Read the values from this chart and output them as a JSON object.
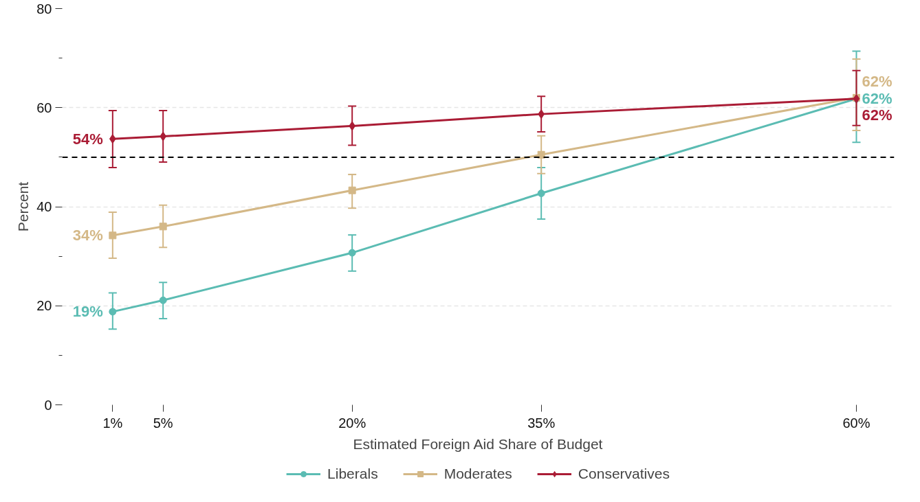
{
  "chart_data": {
    "type": "line",
    "xlabel": "Estimated Foreign Aid Share of Budget",
    "ylabel": "Percent",
    "x": [
      1,
      5,
      20,
      35,
      60
    ],
    "xlim": [
      -3,
      63
    ],
    "ylim": [
      0,
      80
    ],
    "xticks": [
      {
        "value": 1,
        "label": "1%"
      },
      {
        "value": 5,
        "label": "5%"
      },
      {
        "value": 20,
        "label": "20%"
      },
      {
        "value": 35,
        "label": "35%"
      },
      {
        "value": 60,
        "label": "60%"
      }
    ],
    "yticks": [
      0,
      {
        "value": 10,
        "label": null
      },
      20,
      {
        "value": 30,
        "label": null
      },
      40,
      {
        "value": 50,
        "label": null
      },
      60,
      {
        "value": 70,
        "label": null
      },
      80
    ],
    "grid": "y",
    "legend": "bottom",
    "ref_lines": [
      {
        "axis": "y",
        "value": 50,
        "color": "#000000",
        "line_style": "dashed"
      }
    ],
    "series": [
      {
        "name": "Liberals",
        "color": "#5bbcb3",
        "marker": "circle",
        "values": [
          18.8,
          21.1,
          30.7,
          42.7,
          61.8
        ],
        "errors": [
          [
            15.3,
            22.6
          ],
          [
            17.4,
            24.7
          ],
          [
            27.0,
            34.3
          ],
          [
            37.5,
            47.9
          ],
          [
            53.0,
            71.4
          ]
        ],
        "value_labels": [
          "19%",
          null,
          null,
          null,
          "62%"
        ]
      },
      {
        "name": "Moderates",
        "color": "#d4b887",
        "marker": "square",
        "values": [
          34.2,
          36.0,
          43.3,
          50.5,
          62.0
        ],
        "errors": [
          [
            29.6,
            38.9
          ],
          [
            31.8,
            40.3
          ],
          [
            39.7,
            46.5
          ],
          [
            46.7,
            54.3
          ],
          [
            55.4,
            69.8
          ]
        ],
        "value_labels": [
          "34%",
          null,
          null,
          null,
          "62%"
        ]
      },
      {
        "name": "Conservatives",
        "color": "#aa1c35",
        "marker": "diamond",
        "values": [
          53.7,
          54.2,
          56.3,
          58.7,
          61.8
        ],
        "errors": [
          [
            47.9,
            59.4
          ],
          [
            49.0,
            59.4
          ],
          [
            52.4,
            60.3
          ],
          [
            55.1,
            62.3
          ],
          [
            56.4,
            67.5
          ]
        ],
        "value_labels": [
          "54%",
          null,
          null,
          null,
          "62%"
        ]
      }
    ]
  }
}
